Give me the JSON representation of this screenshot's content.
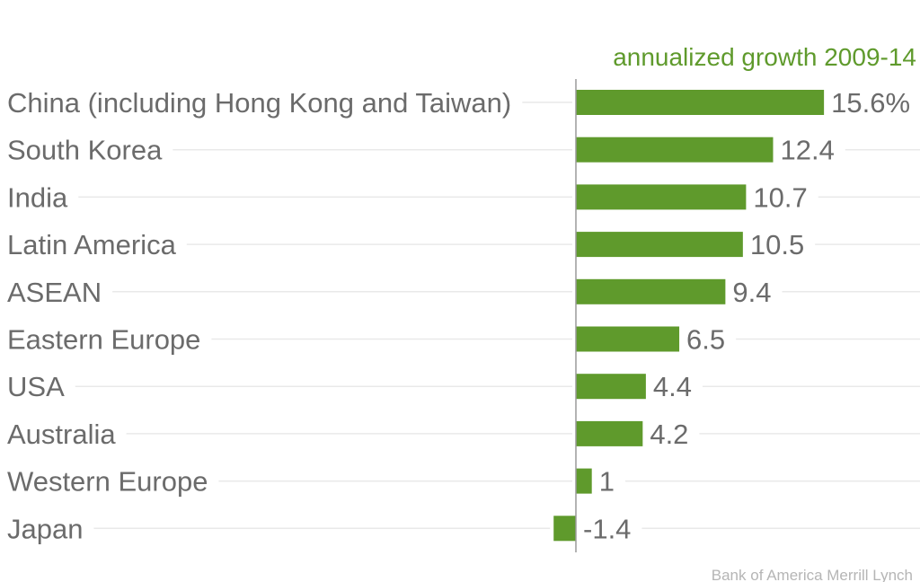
{
  "chart_data": {
    "type": "bar",
    "orientation": "horizontal",
    "series_title": "annualized growth 2009-14",
    "categories": [
      "China (including Hong Kong and Taiwan)",
      "South Korea",
      "India",
      "Latin America",
      "ASEAN",
      "Eastern Europe",
      "USA",
      "Australia",
      "Western Europe",
      "Japan"
    ],
    "values": [
      15.6,
      12.4,
      10.7,
      10.5,
      9.4,
      6.5,
      4.4,
      4.2,
      1,
      -1.4
    ],
    "value_labels": [
      "15.6%",
      "12.4",
      "10.7",
      "10.5",
      "9.4",
      "6.5",
      "4.4",
      "4.2",
      "1",
      "-1.4"
    ],
    "grid": true,
    "colors": {
      "bar": "#5f9a2c",
      "title": "#5f9a2c",
      "text": "#6b6b6b",
      "grid": "#e9e9e9",
      "axis": "#9a9a9a"
    }
  },
  "source": "Bank of America Merrill Lynch"
}
